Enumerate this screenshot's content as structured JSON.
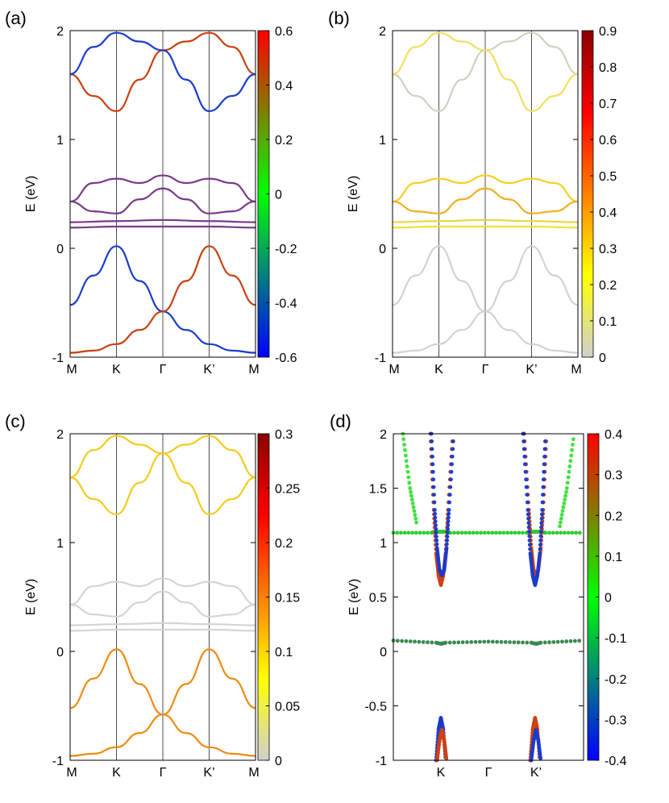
{
  "figure": {
    "description_free": true,
    "k_labels": [
      "M",
      "K",
      "Γ",
      "K’",
      "M"
    ],
    "k_labels_d": [
      "K",
      "Γ",
      "K’"
    ],
    "ylabel": "E (eV)"
  },
  "chart_data": [
    {
      "panel": "(a)",
      "type": "line",
      "xlabel": "",
      "ylabel": "E (eV)",
      "x_ticks": [
        "M",
        "K",
        "Γ",
        "K’",
        "M"
      ],
      "yticks": [
        -1,
        0,
        1,
        2
      ],
      "ytick_labels": [
        "-1",
        "0",
        "1",
        "2"
      ],
      "ylim": [
        -1,
        2
      ],
      "colorbar": {
        "range": [
          -0.6,
          0.6
        ],
        "ticks": [
          0.6,
          0.4,
          0.2,
          0,
          -0.2,
          -0.4,
          -0.6
        ],
        "tick_labels": [
          "0.6",
          "0.4",
          "0.2",
          "0",
          "-0.2",
          "-0.4",
          "-0.6"
        ],
        "colors": [
          "#0000ff",
          "#00ff00",
          "#ff0000"
        ]
      },
      "bands": [
        {
          "name": "valence-1-spin-down",
          "color": "#1a3ccc",
          "x": [
            0,
            0.5,
            1,
            1.5,
            2,
            2.5,
            3,
            3.5,
            4
          ],
          "y": [
            -0.52,
            -0.25,
            0.02,
            -0.3,
            -0.58,
            -0.75,
            -0.88,
            -0.94,
            -0.96
          ]
        },
        {
          "name": "valence-1-spin-up",
          "color": "#c84010",
          "x": [
            0,
            0.5,
            1,
            1.5,
            2,
            2.5,
            3,
            3.5,
            4
          ],
          "y": [
            -0.96,
            -0.94,
            -0.88,
            -0.75,
            -0.58,
            -0.3,
            0.02,
            -0.25,
            -0.52
          ]
        },
        {
          "name": "flat-band-1",
          "color": "#7a3a8a",
          "x": [
            0,
            1,
            2,
            3,
            4
          ],
          "y": [
            0.19,
            0.2,
            0.2,
            0.2,
            0.19
          ]
        },
        {
          "name": "flat-band-2",
          "color": "#7a3a8a",
          "x": [
            0,
            1,
            2,
            3,
            4
          ],
          "y": [
            0.24,
            0.25,
            0.26,
            0.25,
            0.24
          ]
        },
        {
          "name": "flat-band-3",
          "color": "#7a3a8a",
          "x": [
            0,
            0.5,
            1,
            1.5,
            2,
            2.5,
            3,
            3.5,
            4
          ],
          "y": [
            0.43,
            0.6,
            0.64,
            0.6,
            0.67,
            0.6,
            0.64,
            0.6,
            0.43
          ]
        },
        {
          "name": "flat-band-4",
          "color": "#7a3a8a",
          "x": [
            0,
            0.5,
            1,
            1.5,
            2,
            2.5,
            3,
            3.5,
            4
          ],
          "y": [
            0.43,
            0.34,
            0.32,
            0.45,
            0.55,
            0.45,
            0.32,
            0.34,
            0.43
          ]
        },
        {
          "name": "conduction-1",
          "color": "#c84010",
          "x": [
            0,
            0.5,
            1,
            1.5,
            2,
            2.5,
            3,
            3.5,
            4
          ],
          "y": [
            1.6,
            1.4,
            1.26,
            1.55,
            1.82,
            1.9,
            1.98,
            1.85,
            1.6
          ]
        },
        {
          "name": "conduction-2",
          "color": "#1a3ccc",
          "x": [
            0,
            0.5,
            1,
            1.5,
            2,
            2.5,
            3,
            3.5,
            4
          ],
          "y": [
            1.6,
            1.85,
            1.98,
            1.9,
            1.82,
            1.55,
            1.26,
            1.4,
            1.6
          ]
        }
      ]
    },
    {
      "panel": "(b)",
      "type": "line",
      "xlabel": "",
      "ylabel": "E (eV)",
      "x_ticks": [
        "M",
        "K",
        "Γ",
        "K’",
        "M"
      ],
      "yticks": [
        -1,
        0,
        1,
        2
      ],
      "ytick_labels": [
        "-1",
        "0",
        "1",
        "2"
      ],
      "ylim": [
        -1,
        2
      ],
      "colorbar": {
        "range": [
          0,
          0.9
        ],
        "ticks": [
          0.9,
          0.8,
          0.7,
          0.6,
          0.5,
          0.4,
          0.3,
          0.2,
          0.1,
          0
        ],
        "tick_labels": [
          "0.9",
          "0.8",
          "0.7",
          "0.6",
          "0.5",
          "0.4",
          "0.3",
          "0.2",
          "0.1",
          "0"
        ],
        "colors": [
          "#d0d0d0",
          "#ffff00",
          "#ff8000",
          "#ff0000",
          "#8b0000"
        ]
      },
      "bands": [
        {
          "name": "valence-1-a",
          "color": "#d2d2d2",
          "x": [
            0,
            0.5,
            1,
            1.5,
            2,
            2.5,
            3,
            3.5,
            4
          ],
          "y": [
            -0.52,
            -0.25,
            0.02,
            -0.3,
            -0.58,
            -0.75,
            -0.88,
            -0.94,
            -0.96
          ]
        },
        {
          "name": "valence-1-b",
          "color": "#d2d2d2",
          "x": [
            0,
            0.5,
            1,
            1.5,
            2,
            2.5,
            3,
            3.5,
            4
          ],
          "y": [
            -0.96,
            -0.94,
            -0.88,
            -0.75,
            -0.58,
            -0.3,
            0.02,
            -0.25,
            -0.52
          ]
        },
        {
          "name": "flat-band-1",
          "color": "#f2e030",
          "x": [
            0,
            1,
            2,
            3,
            4
          ],
          "y": [
            0.19,
            0.2,
            0.2,
            0.2,
            0.19
          ]
        },
        {
          "name": "flat-band-2",
          "color": "#e8d840",
          "x": [
            0,
            1,
            2,
            3,
            4
          ],
          "y": [
            0.24,
            0.25,
            0.26,
            0.25,
            0.24
          ]
        },
        {
          "name": "flat-band-3",
          "color": "#f4d020",
          "x": [
            0,
            0.5,
            1,
            1.5,
            2,
            2.5,
            3,
            3.5,
            4
          ],
          "y": [
            0.43,
            0.6,
            0.64,
            0.6,
            0.67,
            0.6,
            0.64,
            0.6,
            0.43
          ]
        },
        {
          "name": "flat-band-4",
          "color": "#f0b020",
          "x": [
            0,
            0.5,
            1,
            1.5,
            2,
            2.5,
            3,
            3.5,
            4
          ],
          "y": [
            0.43,
            0.34,
            0.32,
            0.45,
            0.55,
            0.45,
            0.32,
            0.34,
            0.43
          ]
        },
        {
          "name": "conduction-1",
          "color": "#d0d0c0",
          "x": [
            0,
            0.5,
            1,
            1.5,
            2,
            2.5,
            3,
            3.5,
            4
          ],
          "y": [
            1.6,
            1.4,
            1.26,
            1.55,
            1.82,
            1.9,
            1.98,
            1.85,
            1.6
          ]
        },
        {
          "name": "conduction-2",
          "color": "#f0e060",
          "x": [
            0,
            0.5,
            1,
            1.5,
            2,
            2.5,
            3,
            3.5,
            4
          ],
          "y": [
            1.6,
            1.85,
            1.98,
            1.9,
            1.82,
            1.55,
            1.26,
            1.4,
            1.6
          ]
        }
      ]
    },
    {
      "panel": "(c)",
      "type": "line",
      "xlabel": "",
      "ylabel": "E (eV)",
      "x_ticks": [
        "M",
        "K",
        "Γ",
        "K’",
        "M"
      ],
      "yticks": [
        -1,
        0,
        1,
        2
      ],
      "ytick_labels": [
        "-1",
        "0",
        "1",
        "2"
      ],
      "ylim": [
        -1,
        2
      ],
      "colorbar": {
        "range": [
          0,
          0.3
        ],
        "ticks": [
          0.3,
          0.25,
          0.2,
          0.15,
          0.1,
          0.05,
          0
        ],
        "tick_labels": [
          "0.3",
          "0.25",
          "0.2",
          "0.15",
          "0.1",
          "0.05",
          "0"
        ],
        "colors": [
          "#d0d0d0",
          "#ffff00",
          "#ff8000",
          "#ff0000",
          "#8b0000"
        ]
      },
      "bands": [
        {
          "name": "valence-1-a",
          "color": "#ee8a10",
          "x": [
            0,
            0.5,
            1,
            1.5,
            2,
            2.5,
            3,
            3.5,
            4
          ],
          "y": [
            -0.52,
            -0.25,
            0.02,
            -0.3,
            -0.58,
            -0.75,
            -0.88,
            -0.94,
            -0.96
          ]
        },
        {
          "name": "valence-1-b",
          "color": "#ee8a10",
          "x": [
            0,
            0.5,
            1,
            1.5,
            2,
            2.5,
            3,
            3.5,
            4
          ],
          "y": [
            -0.96,
            -0.94,
            -0.88,
            -0.75,
            -0.58,
            -0.3,
            0.02,
            -0.25,
            -0.52
          ]
        },
        {
          "name": "flat-band-1",
          "color": "#d4d4d4",
          "x": [
            0,
            1,
            2,
            3,
            4
          ],
          "y": [
            0.19,
            0.2,
            0.2,
            0.2,
            0.19
          ]
        },
        {
          "name": "flat-band-2",
          "color": "#d4d4d4",
          "x": [
            0,
            1,
            2,
            3,
            4
          ],
          "y": [
            0.24,
            0.25,
            0.26,
            0.25,
            0.24
          ]
        },
        {
          "name": "flat-band-3",
          "color": "#d4d4d4",
          "x": [
            0,
            0.5,
            1,
            1.5,
            2,
            2.5,
            3,
            3.5,
            4
          ],
          "y": [
            0.43,
            0.6,
            0.64,
            0.6,
            0.67,
            0.6,
            0.64,
            0.6,
            0.43
          ]
        },
        {
          "name": "flat-band-4",
          "color": "#d4d4d4",
          "x": [
            0,
            0.5,
            1,
            1.5,
            2,
            2.5,
            3,
            3.5,
            4
          ],
          "y": [
            0.43,
            0.34,
            0.32,
            0.45,
            0.55,
            0.45,
            0.32,
            0.34,
            0.43
          ]
        },
        {
          "name": "conduction-1",
          "color": "#f2cc20",
          "x": [
            0,
            0.5,
            1,
            1.5,
            2,
            2.5,
            3,
            3.5,
            4
          ],
          "y": [
            1.6,
            1.4,
            1.26,
            1.55,
            1.82,
            1.9,
            1.98,
            1.85,
            1.6
          ]
        },
        {
          "name": "conduction-2",
          "color": "#f2cc20",
          "x": [
            0,
            0.5,
            1,
            1.5,
            2,
            2.5,
            3,
            3.5,
            4
          ],
          "y": [
            1.6,
            1.85,
            1.98,
            1.9,
            1.82,
            1.55,
            1.26,
            1.4,
            1.6
          ]
        }
      ]
    },
    {
      "panel": "(d)",
      "type": "scatter",
      "xlabel": "",
      "ylabel": "E (eV)",
      "x_ticks": [
        "K",
        "Γ",
        "K’"
      ],
      "x_tick_pos": [
        1,
        2,
        3
      ],
      "xlim": [
        0,
        4
      ],
      "yticks": [
        -1,
        -0.5,
        0,
        0.5,
        1,
        1.5,
        2
      ],
      "ytick_labels": [
        "-1",
        "-0.5",
        "0",
        "0.5",
        "1",
        "1.5",
        "2"
      ],
      "ylim": [
        -1,
        2
      ],
      "colorbar": {
        "range": [
          -0.4,
          0.4
        ],
        "ticks": [
          0.4,
          0.3,
          0.2,
          0.1,
          0,
          -0.1,
          -0.2,
          -0.3,
          -0.4
        ],
        "tick_labels": [
          "0.4",
          "0.3",
          "0.2",
          "0.1",
          "0",
          "-0.1",
          "-0.2",
          "-0.3",
          "-0.4"
        ],
        "colors": [
          "#0000ff",
          "#00ff00",
          "#ff0000"
        ]
      },
      "bands": [
        {
          "name": "flat-1.1",
          "color": "#2ecc30",
          "x": [
            0,
            0.8,
            0.9,
            1,
            1.1,
            1.2,
            2,
            2.8,
            2.9,
            3,
            3.1,
            3.2,
            4
          ],
          "y": [
            1.09,
            1.09,
            1.1,
            1.1,
            1.1,
            1.09,
            1.09,
            1.09,
            1.1,
            1.1,
            1.1,
            1.09,
            1.09
          ]
        },
        {
          "name": "flat-0.1",
          "color": "#3a8a50",
          "x": [
            0,
            0.9,
            1,
            1.1,
            2,
            2.9,
            3,
            3.1,
            4
          ],
          "y": [
            0.1,
            0.08,
            0.07,
            0.08,
            0.09,
            0.08,
            0.07,
            0.08,
            0.1
          ]
        },
        {
          "name": "cone-K-red",
          "color": "#d04010",
          "x": [
            0.78,
            0.85,
            0.9,
            0.95,
            1,
            1.05,
            1.1,
            1.15,
            1.25
          ],
          "y": [
            2,
            1.3,
            0.9,
            0.7,
            0.61,
            0.7,
            0.9,
            1.3,
            2
          ]
        },
        {
          "name": "cone-K-blue",
          "color": "#1a3ccc",
          "x": [
            0.8,
            0.87,
            0.92,
            0.97,
            1.02,
            1.07,
            1.12,
            1.17,
            1.27
          ],
          "y": [
            2,
            1.3,
            0.95,
            0.75,
            0.7,
            0.75,
            0.95,
            1.3,
            2
          ]
        },
        {
          "name": "cone-K2-red",
          "color": "#d04010",
          "x": [
            2.75,
            2.85,
            2.9,
            2.95,
            3,
            3.05,
            3.1,
            3.15,
            3.22
          ],
          "y": [
            2,
            1.3,
            0.95,
            0.75,
            0.7,
            0.75,
            0.95,
            1.3,
            2
          ]
        },
        {
          "name": "cone-K2-blue",
          "color": "#1a3ccc",
          "x": [
            2.73,
            2.83,
            2.88,
            2.93,
            2.98,
            3.03,
            3.08,
            3.13,
            3.2
          ],
          "y": [
            2,
            1.3,
            0.9,
            0.7,
            0.61,
            0.7,
            0.9,
            1.3,
            2
          ]
        },
        {
          "name": "green-tails",
          "color": "#40e040",
          "x": [
            0.2,
            0.35,
            0.5
          ],
          "y": [
            2,
            1.5,
            1.15
          ]
        },
        {
          "name": "green-tails-2",
          "color": "#40e040",
          "x": [
            3.5,
            3.65,
            3.8
          ],
          "y": [
            1.15,
            1.5,
            2
          ]
        },
        {
          "name": "valence-K-blue",
          "color": "#1a3ccc",
          "x": [
            0.9,
            0.95,
            1,
            1.05,
            1.1
          ],
          "y": [
            -1,
            -0.72,
            -0.61,
            -0.72,
            -1
          ]
        },
        {
          "name": "valence-K-red",
          "color": "#d04010",
          "x": [
            0.92,
            0.97,
            1.02,
            1.07,
            1.12
          ],
          "y": [
            -1,
            -0.82,
            -0.72,
            -0.82,
            -1
          ]
        },
        {
          "name": "valence-K2-red",
          "color": "#d04010",
          "x": [
            2.88,
            2.93,
            2.98,
            3.03,
            3.08
          ],
          "y": [
            -1,
            -0.72,
            -0.61,
            -0.72,
            -1
          ]
        },
        {
          "name": "valence-K2-blue",
          "color": "#1a3ccc",
          "x": [
            2.9,
            2.95,
            3,
            3.05,
            3.1
          ],
          "y": [
            -1,
            -0.82,
            -0.72,
            -0.82,
            -1
          ]
        }
      ]
    }
  ]
}
